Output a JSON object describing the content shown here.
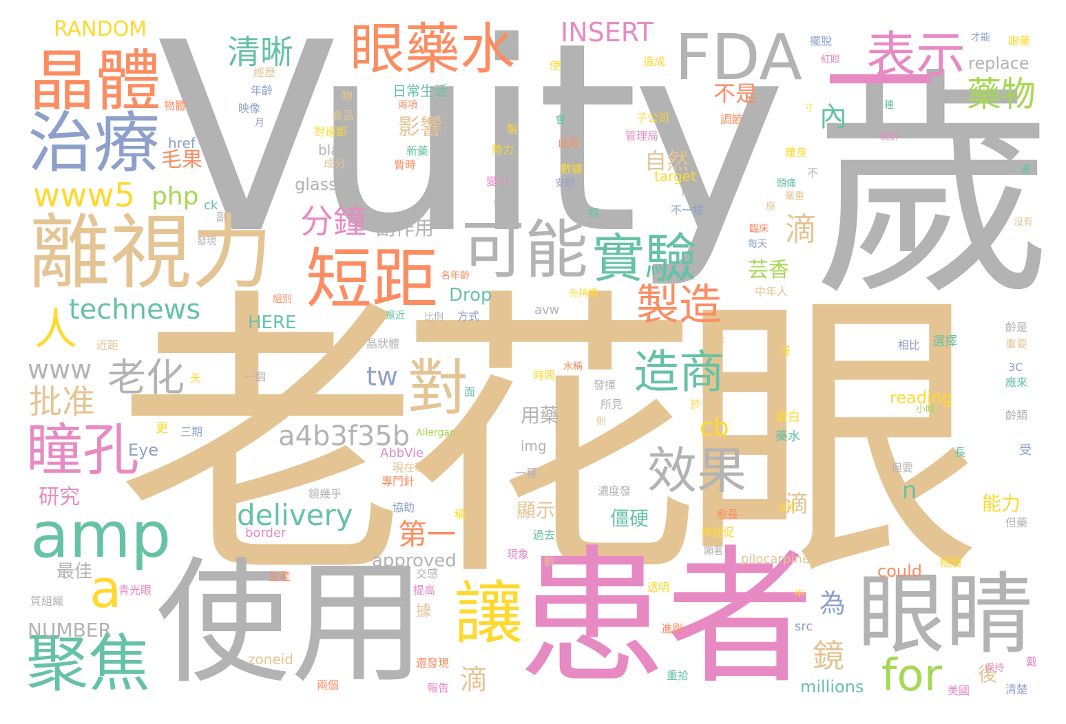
{
  "palette": {
    "gray": "#b3b3b3",
    "tan": "#e5c494",
    "pink": "#e78ac3",
    "orange": "#fc8d62",
    "green": "#66c2a5",
    "blue": "#8da0cb",
    "lime": "#a6d854",
    "yellow": "#ffd92f"
  },
  "words": [
    {
      "text": "Vuity",
      "color": "gray"
    },
    {
      "text": "老花眼",
      "color": "tan"
    },
    {
      "text": "歲",
      "color": "gray"
    },
    {
      "text": "患者",
      "color": "pink"
    },
    {
      "text": "使用",
      "color": "gray"
    },
    {
      "text": "一",
      "color": "pink"
    },
    {
      "text": "眼睛",
      "color": "gray"
    },
    {
      "text": "離視力",
      "color": "tan"
    },
    {
      "text": "晶體",
      "color": "orange"
    },
    {
      "text": "治療",
      "color": "blue"
    },
    {
      "text": "FDA",
      "color": "gray"
    },
    {
      "text": "眼藥水",
      "color": "orange"
    },
    {
      "text": "表示",
      "color": "pink"
    },
    {
      "text": "短距",
      "color": "orange"
    },
    {
      "text": "可能",
      "color": "gray"
    },
    {
      "text": "實驗",
      "color": "green"
    },
    {
      "text": "amp",
      "color": "green"
    },
    {
      "text": "讓",
      "color": "yellow"
    },
    {
      "text": "聚焦",
      "color": "green"
    },
    {
      "text": "瞳孔",
      "color": "pink"
    },
    {
      "text": "對",
      "color": "tan"
    },
    {
      "text": "效果",
      "color": "gray"
    },
    {
      "text": "造商",
      "color": "green"
    },
    {
      "text": "製造",
      "color": "orange"
    },
    {
      "text": "人",
      "color": "yellow"
    },
    {
      "text": "a",
      "color": "yellow"
    },
    {
      "text": "for",
      "color": "lime"
    },
    {
      "text": "老化",
      "color": "gray"
    },
    {
      "text": "清晰",
      "color": "green"
    },
    {
      "text": "藥物",
      "color": "lime"
    },
    {
      "text": "www5",
      "color": "yellow"
    },
    {
      "text": "technews",
      "color": "green"
    },
    {
      "text": "a4b3f35b",
      "color": "gray"
    },
    {
      "text": "批准",
      "color": "tan"
    },
    {
      "text": "delivery",
      "color": "green"
    },
    {
      "text": "分鐘",
      "color": "pink"
    },
    {
      "text": "滴",
      "color": "tan"
    },
    {
      "text": "鏡",
      "color": "tan"
    },
    {
      "text": "INSERT",
      "color": "pink"
    },
    {
      "text": "RANDOM",
      "color": "yellow"
    },
    {
      "text": "www",
      "color": "gray"
    },
    {
      "text": "tw",
      "color": "blue"
    },
    {
      "text": "php",
      "color": "lime"
    },
    {
      "text": "cb",
      "color": "yellow"
    },
    {
      "text": "第一",
      "color": "orange"
    },
    {
      "text": "內",
      "color": "green"
    },
    {
      "text": "為",
      "color": "blue"
    },
    {
      "text": "毛果",
      "color": "orange"
    },
    {
      "text": "影響",
      "color": "tan"
    },
    {
      "text": "芸香",
      "color": "lime"
    },
    {
      "text": "自然",
      "color": "tan"
    },
    {
      "text": "滴",
      "color": "tan"
    },
    {
      "text": "研究",
      "color": "pink"
    },
    {
      "text": "NUMBER",
      "color": "gray"
    },
    {
      "text": "不是",
      "color": "orange"
    },
    {
      "text": "replace",
      "color": "gray"
    },
    {
      "text": "glasses",
      "color": "gray"
    },
    {
      "text": "副作用",
      "color": "gray"
    },
    {
      "text": "approved",
      "color": "gray"
    },
    {
      "text": "millions",
      "color": "green"
    },
    {
      "text": "HERE",
      "color": "green"
    },
    {
      "text": "Drop",
      "color": "green"
    },
    {
      "text": "n",
      "color": "green"
    },
    {
      "text": "用藥",
      "color": "gray"
    },
    {
      "text": "顯示",
      "color": "tan"
    },
    {
      "text": "僵硬",
      "color": "green"
    },
    {
      "text": "能力",
      "color": "yellow"
    },
    {
      "text": "reading",
      "color": "yellow"
    },
    {
      "text": "could",
      "color": "orange"
    },
    {
      "text": "Eye",
      "color": "blue"
    },
    {
      "text": "最佳",
      "color": "gray"
    },
    {
      "text": "後",
      "color": "tan"
    },
    {
      "text": "滴",
      "color": "tan"
    },
    {
      "text": "日常生活",
      "color": "green"
    },
    {
      "text": "pilocarpine",
      "color": "tan"
    },
    {
      "text": "AbbVie",
      "color": "pink"
    },
    {
      "text": "zoneid",
      "color": "tan"
    },
    {
      "text": "border",
      "color": "pink"
    },
    {
      "text": "href",
      "color": "blue"
    },
    {
      "text": "target",
      "color": "yellow"
    },
    {
      "text": "blank",
      "color": "gray"
    },
    {
      "text": "img",
      "color": "gray"
    },
    {
      "text": "alt",
      "color": "yellow"
    },
    {
      "text": "src",
      "color": "blue"
    },
    {
      "text": "avw",
      "color": "gray"
    },
    {
      "text": "ck",
      "color": "green"
    },
    {
      "text": "眼藥",
      "color": "yellow"
    },
    {
      "text": "擺脫",
      "color": "blue"
    },
    {
      "text": "紅眼",
      "color": "pink"
    },
    {
      "text": "才能",
      "color": "blue"
    },
    {
      "text": "造成",
      "color": "yellow"
    },
    {
      "text": "使",
      "color": "yellow"
    },
    {
      "text": "經歷",
      "color": "tan"
    },
    {
      "text": "年齡",
      "color": "blue"
    },
    {
      "text": "物體",
      "color": "orange"
    },
    {
      "text": "映像",
      "color": "blue"
    },
    {
      "text": "月",
      "color": "blue"
    },
    {
      "text": "物",
      "color": "tan"
    },
    {
      "text": "食品",
      "color": "tan"
    },
    {
      "text": "對遠距",
      "color": "yellow"
    },
    {
      "text": "成分",
      "color": "tan"
    },
    {
      "text": "兩項",
      "color": "orange"
    },
    {
      "text": "新藥",
      "color": "green"
    },
    {
      "text": "暫時",
      "color": "orange"
    },
    {
      "text": "子公司",
      "color": "yellow"
    },
    {
      "text": "管理局",
      "color": "pink"
    },
    {
      "text": "調節",
      "color": "orange"
    },
    {
      "text": "寸",
      "color": "yellow"
    },
    {
      "text": "種",
      "color": "green"
    },
    {
      "text": "統計",
      "color": "pink"
    },
    {
      "text": "種臉",
      "color": "gray"
    },
    {
      "text": "連",
      "color": "green"
    },
    {
      "text": "製",
      "color": "yellow"
    },
    {
      "text": "會",
      "color": "green"
    },
    {
      "text": "勢力",
      "color": "yellow"
    },
    {
      "text": "此眼",
      "color": "orange"
    },
    {
      "text": "離身",
      "color": "yellow"
    },
    {
      "text": "數據",
      "color": "yellow"
    },
    {
      "text": "安慰",
      "color": "blue"
    },
    {
      "text": "變小",
      "color": "pink"
    },
    {
      "text": "包括",
      "color": "gray"
    },
    {
      "text": "不一樣",
      "color": "blue"
    },
    {
      "text": "mL",
      "color": "gray"
    },
    {
      "text": "不",
      "color": "gray"
    },
    {
      "text": "頭痛",
      "color": "green"
    },
    {
      "text": "嚴重",
      "color": "tan"
    },
    {
      "text": "原",
      "color": "tan"
    },
    {
      "text": "臨床",
      "color": "orange"
    },
    {
      "text": "每天",
      "color": "blue"
    },
    {
      "text": "沒有",
      "color": "tan"
    },
    {
      "text": "瓶",
      "color": "green"
    },
    {
      "text": "副",
      "color": "gray"
    },
    {
      "text": "發現",
      "color": "gray"
    },
    {
      "text": "名年齡",
      "color": "orange"
    },
    {
      "text": "先持續",
      "color": "yellow"
    },
    {
      "text": "中年人",
      "color": "tan"
    },
    {
      "text": "組別",
      "color": "orange"
    },
    {
      "text": "還近",
      "color": "green"
    },
    {
      "text": "比例",
      "color": "gray"
    },
    {
      "text": "方式",
      "color": "blue"
    },
    {
      "text": "近距",
      "color": "tan"
    },
    {
      "text": "作",
      "color": "tan"
    },
    {
      "text": "晶狀體",
      "color": "gray"
    },
    {
      "text": "水稱",
      "color": "orange"
    },
    {
      "text": "時間",
      "color": "yellow"
    },
    {
      "text": "發揮",
      "color": "gray"
    },
    {
      "text": "所見",
      "color": "gray"
    },
    {
      "text": "齡是",
      "color": "gray"
    },
    {
      "text": "重要",
      "color": "tan"
    },
    {
      "text": "相比",
      "color": "blue"
    },
    {
      "text": "選擇",
      "color": "green"
    },
    {
      "text": "沒",
      "color": "yellow"
    },
    {
      "text": "3C",
      "color": "blue"
    },
    {
      "text": "廠來",
      "color": "green"
    },
    {
      "text": "天",
      "color": "yellow"
    },
    {
      "text": "一個",
      "color": "gray"
    },
    {
      "text": "面",
      "color": "green"
    },
    {
      "text": "於",
      "color": "yellow"
    },
    {
      "text": "蛋白",
      "color": "yellow"
    },
    {
      "text": "藥水",
      "color": "green"
    },
    {
      "text": "小時",
      "color": "lime"
    },
    {
      "text": "齡類",
      "color": "gray"
    },
    {
      "text": "則",
      "color": "tan"
    },
    {
      "text": "更",
      "color": "yellow"
    },
    {
      "text": "三期",
      "color": "blue"
    },
    {
      "text": "Allergan",
      "color": "lime"
    },
    {
      "text": "現在種",
      "color": "tan"
    },
    {
      "text": "專門針",
      "color": "orange"
    },
    {
      "text": "一種",
      "color": "gray"
    },
    {
      "text": "濃度發",
      "color": "gray"
    },
    {
      "text": "長",
      "color": "green"
    },
    {
      "text": "受",
      "color": "blue"
    },
    {
      "text": "但要",
      "color": "gray"
    },
    {
      "text": "鏡幾乎",
      "color": "gray"
    },
    {
      "text": "協助",
      "color": "blue"
    },
    {
      "text": "稱",
      "color": "yellow"
    },
    {
      "text": "愈長",
      "color": "orange"
    },
    {
      "text": "神經促",
      "color": "yellow"
    },
    {
      "text": "但藥",
      "color": "gray"
    },
    {
      "text": "過去",
      "color": "green"
    },
    {
      "text": "顯著",
      "color": "gray"
    },
    {
      "text": "現象",
      "color": "pink"
    },
    {
      "text": "齡",
      "color": "tan"
    },
    {
      "text": "交感",
      "color": "gray"
    },
    {
      "text": "相關",
      "color": "yellow"
    },
    {
      "text": "生產",
      "color": "orange"
    },
    {
      "text": "青光眼",
      "color": "pink"
    },
    {
      "text": "質組織",
      "color": "gray"
    },
    {
      "text": "提高",
      "color": "pink"
    },
    {
      "text": "透明",
      "color": "yellow"
    },
    {
      "text": "中",
      "color": "yellow"
    },
    {
      "text": "進剛",
      "color": "orange"
    },
    {
      "text": "據",
      "color": "tan"
    },
    {
      "text": "還發現",
      "color": "orange"
    },
    {
      "text": "兩個",
      "color": "orange"
    },
    {
      "text": "報告",
      "color": "pink"
    },
    {
      "text": "保持",
      "color": "pink"
    },
    {
      "text": "重拾",
      "color": "green"
    },
    {
      "text": "美國",
      "color": "pink"
    },
    {
      "text": "戴",
      "color": "pink"
    },
    {
      "text": "清楚",
      "color": "blue"
    }
  ]
}
